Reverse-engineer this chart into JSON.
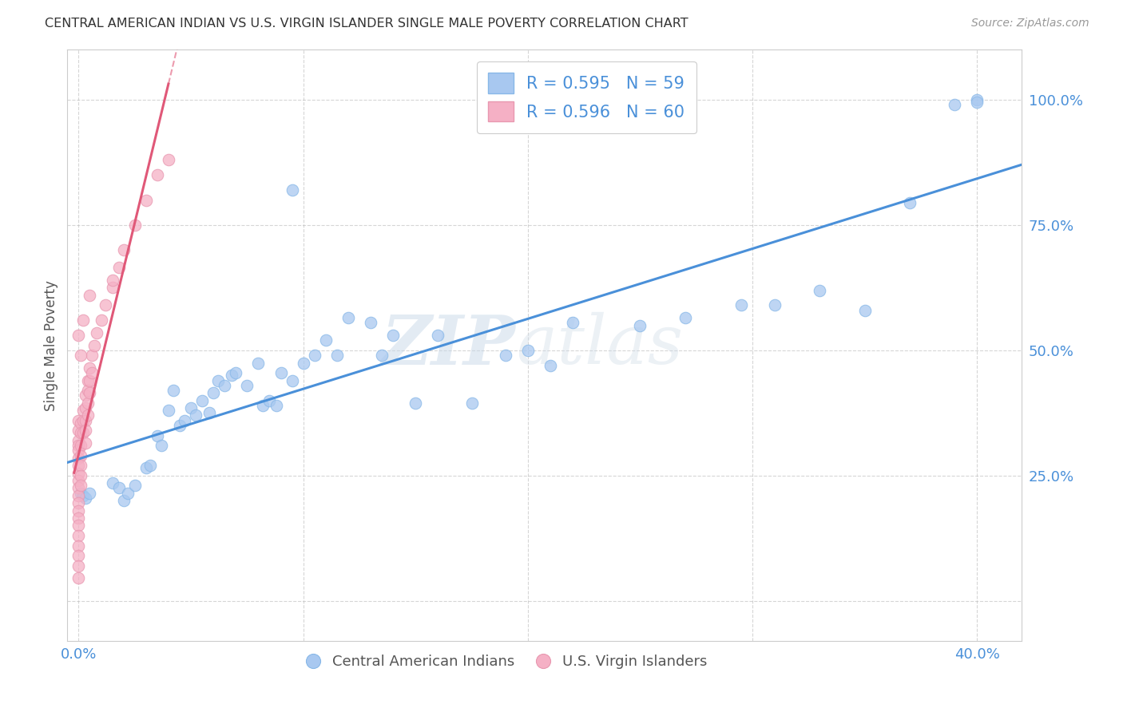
{
  "title": "CENTRAL AMERICAN INDIAN VS U.S. VIRGIN ISLANDER SINGLE MALE POVERTY CORRELATION CHART",
  "source": "Source: ZipAtlas.com",
  "ylabel": "Single Male Poverty",
  "legend_label_blue": "Central American Indians",
  "legend_label_pink": "U.S. Virgin Islanders",
  "r_blue": 0.595,
  "n_blue": 59,
  "r_pink": 0.596,
  "n_pink": 60,
  "xlim": [
    -0.005,
    0.42
  ],
  "ylim": [
    -0.08,
    1.1
  ],
  "blue_scatter_x": [
    0.001,
    0.002,
    0.003,
    0.005,
    0.015,
    0.018,
    0.02,
    0.022,
    0.025,
    0.03,
    0.032,
    0.035,
    0.037,
    0.04,
    0.042,
    0.045,
    0.047,
    0.05,
    0.052,
    0.055,
    0.058,
    0.06,
    0.062,
    0.065,
    0.068,
    0.07,
    0.075,
    0.08,
    0.082,
    0.085,
    0.088,
    0.09,
    0.095,
    0.1,
    0.105,
    0.11,
    0.115,
    0.12,
    0.13,
    0.135,
    0.14,
    0.15,
    0.16,
    0.175,
    0.19,
    0.2,
    0.21,
    0.22,
    0.25,
    0.27,
    0.295,
    0.31,
    0.33,
    0.35,
    0.37,
    0.39,
    0.4,
    0.4,
    0.095
  ],
  "blue_scatter_y": [
    0.215,
    0.21,
    0.205,
    0.215,
    0.235,
    0.225,
    0.2,
    0.215,
    0.23,
    0.265,
    0.27,
    0.33,
    0.31,
    0.38,
    0.42,
    0.35,
    0.36,
    0.385,
    0.37,
    0.4,
    0.375,
    0.415,
    0.44,
    0.43,
    0.45,
    0.455,
    0.43,
    0.475,
    0.39,
    0.4,
    0.39,
    0.455,
    0.44,
    0.475,
    0.49,
    0.52,
    0.49,
    0.565,
    0.555,
    0.49,
    0.53,
    0.395,
    0.53,
    0.395,
    0.49,
    0.5,
    0.47,
    0.555,
    0.55,
    0.565,
    0.59,
    0.59,
    0.62,
    0.58,
    0.795,
    0.99,
    1.0,
    0.995,
    0.82
  ],
  "pink_scatter_x": [
    0.0,
    0.0,
    0.0,
    0.0,
    0.0,
    0.0,
    0.0,
    0.0,
    0.0,
    0.0,
    0.0,
    0.0,
    0.0,
    0.0,
    0.0,
    0.0,
    0.0,
    0.0,
    0.0,
    0.0,
    0.001,
    0.001,
    0.001,
    0.001,
    0.001,
    0.001,
    0.001,
    0.002,
    0.002,
    0.002,
    0.003,
    0.003,
    0.003,
    0.003,
    0.003,
    0.004,
    0.004,
    0.004,
    0.004,
    0.005,
    0.005,
    0.005,
    0.006,
    0.006,
    0.007,
    0.008,
    0.01,
    0.012,
    0.015,
    0.018,
    0.02,
    0.025,
    0.03,
    0.035,
    0.04,
    0.0,
    0.001,
    0.002,
    0.005,
    0.015
  ],
  "pink_scatter_y": [
    0.36,
    0.34,
    0.32,
    0.31,
    0.3,
    0.285,
    0.27,
    0.255,
    0.24,
    0.225,
    0.21,
    0.195,
    0.18,
    0.165,
    0.15,
    0.13,
    0.11,
    0.09,
    0.07,
    0.045,
    0.355,
    0.335,
    0.31,
    0.29,
    0.27,
    0.25,
    0.23,
    0.38,
    0.36,
    0.335,
    0.41,
    0.385,
    0.36,
    0.34,
    0.315,
    0.44,
    0.42,
    0.395,
    0.37,
    0.465,
    0.44,
    0.415,
    0.49,
    0.455,
    0.51,
    0.535,
    0.56,
    0.59,
    0.625,
    0.665,
    0.7,
    0.75,
    0.8,
    0.85,
    0.88,
    0.53,
    0.49,
    0.56,
    0.61,
    0.64
  ],
  "watermark_zip": "ZIP",
  "watermark_atlas": "atlas",
  "blue_color": "#a8c8f0",
  "pink_color": "#f5b0c5",
  "blue_line_color": "#4a90d9",
  "pink_line_color": "#e05878",
  "grid_color": "#bbbbbb",
  "title_color": "#333333",
  "source_color": "#999999",
  "axis_tick_color": "#4a90d9",
  "ylabel_color": "#555555",
  "background_color": "#ffffff",
  "legend_text_color": "#4a90d9",
  "bottom_legend_color": "#555555"
}
